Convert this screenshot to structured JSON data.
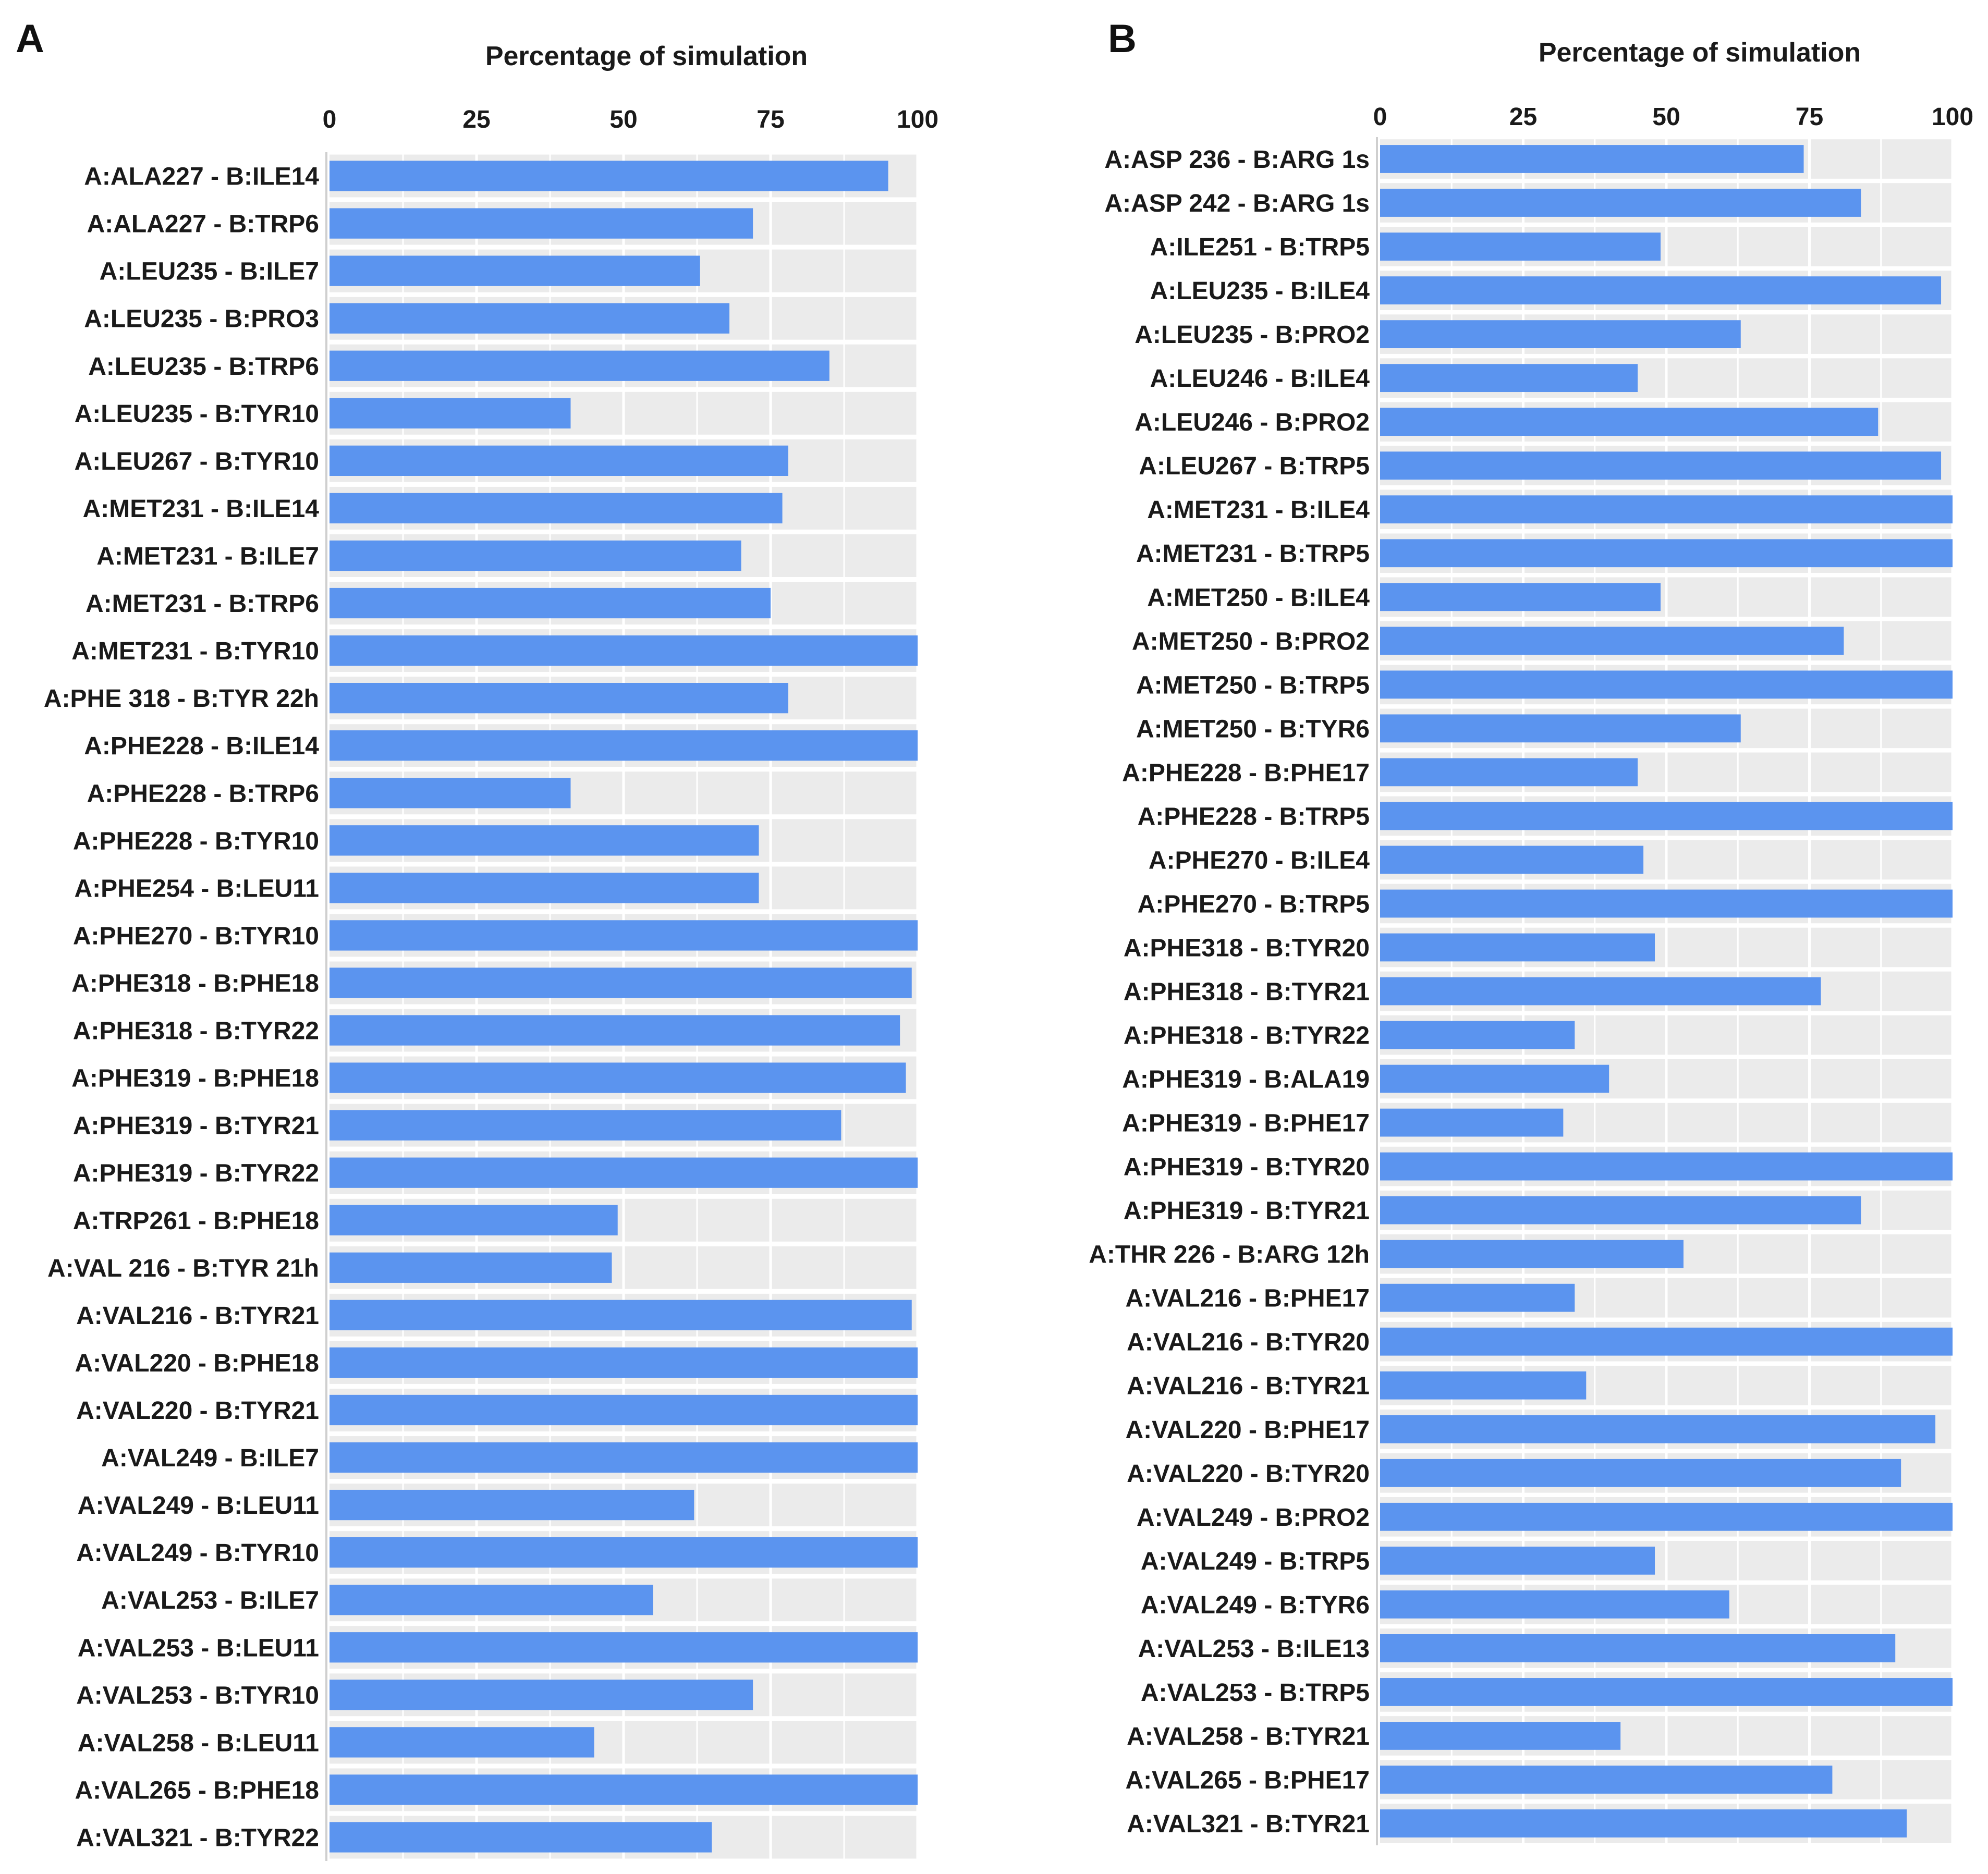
{
  "chart_data": [
    {
      "type": "bar",
      "orientation": "horizontal",
      "panel_label": "A",
      "title": "Percentage of simulation",
      "xlabel": "Percentage of simulation",
      "ylabel": "",
      "xlim": [
        0,
        100
      ],
      "ticks": [
        "0",
        "25",
        "50",
        "75",
        "100"
      ],
      "tick_values": [
        0,
        25,
        50,
        75,
        100
      ],
      "grid": true,
      "bar_color": "#5b94ef",
      "background_color": "#ebebeb",
      "categories": [
        "A:ALA227 - B:ILE14",
        "A:ALA227 - B:TRP6",
        "A:LEU235 - B:ILE7",
        "A:LEU235 - B:PRO3",
        "A:LEU235 - B:TRP6",
        "A:LEU235 - B:TYR10",
        "A:LEU267 - B:TYR10",
        "A:MET231 - B:ILE14",
        "A:MET231 - B:ILE7",
        "A:MET231 - B:TRP6",
        "A:MET231 - B:TYR10",
        "A:PHE 318 - B:TYR 22h",
        "A:PHE228 - B:ILE14",
        "A:PHE228 - B:TRP6",
        "A:PHE228 - B:TYR10",
        "A:PHE254 - B:LEU11",
        "A:PHE270 - B:TYR10",
        "A:PHE318 - B:PHE18",
        "A:PHE318 - B:TYR22",
        "A:PHE319 - B:PHE18",
        "A:PHE319 - B:TYR21",
        "A:PHE319 - B:TYR22",
        "A:TRP261 - B:PHE18",
        "A:VAL 216 - B:TYR 21h",
        "A:VAL216 - B:TYR21",
        "A:VAL220 - B:PHE18",
        "A:VAL220 - B:TYR21",
        "A:VAL249 - B:ILE7",
        "A:VAL249 - B:LEU11",
        "A:VAL249 - B:TYR10",
        "A:VAL253 - B:ILE7",
        "A:VAL253 - B:LEU11",
        "A:VAL253 - B:TYR10",
        "A:VAL258 - B:LEU11",
        "A:VAL265 - B:PHE18",
        "A:VAL321 - B:TYR22"
      ],
      "values": [
        95,
        72,
        63,
        68,
        85,
        41,
        78,
        77,
        70,
        75,
        100,
        78,
        100,
        41,
        73,
        73,
        100,
        99,
        97,
        98,
        87,
        100,
        49,
        48,
        99,
        100,
        100,
        100,
        62,
        100,
        55,
        100,
        72,
        45,
        100,
        65
      ]
    },
    {
      "type": "bar",
      "orientation": "horizontal",
      "panel_label": "B",
      "title": "Percentage of simulation",
      "xlabel": "Percentage of simulation",
      "ylabel": "",
      "xlim": [
        0,
        100
      ],
      "ticks": [
        "0",
        "25",
        "50",
        "75",
        "100"
      ],
      "tick_values": [
        0,
        25,
        50,
        75,
        100
      ],
      "grid": true,
      "bar_color": "#5b94ef",
      "background_color": "#ebebeb",
      "categories": [
        "A:ASP 236 - B:ARG 1s",
        "A:ASP 242 - B:ARG 1s",
        "A:ILE251 - B:TRP5",
        "A:LEU235 - B:ILE4",
        "A:LEU235 - B:PRO2",
        "A:LEU246 - B:ILE4",
        "A:LEU246 - B:PRO2",
        "A:LEU267 - B:TRP5",
        "A:MET231 - B:ILE4",
        "A:MET231 - B:TRP5",
        "A:MET250 - B:ILE4",
        "A:MET250 - B:PRO2",
        "A:MET250 - B:TRP5",
        "A:MET250 - B:TYR6",
        "A:PHE228 - B:PHE17",
        "A:PHE228 - B:TRP5",
        "A:PHE270 - B:ILE4",
        "A:PHE270 - B:TRP5",
        "A:PHE318 - B:TYR20",
        "A:PHE318 - B:TYR21",
        "A:PHE318 - B:TYR22",
        "A:PHE319 - B:ALA19",
        "A:PHE319 - B:PHE17",
        "A:PHE319 - B:TYR20",
        "A:PHE319 - B:TYR21",
        "A:THR 226 - B:ARG 12h",
        "A:VAL216 - B:PHE17",
        "A:VAL216 - B:TYR20",
        "A:VAL216 - B:TYR21",
        "A:VAL220 - B:PHE17",
        "A:VAL220 - B:TYR20",
        "A:VAL249 - B:PRO2",
        "A:VAL249 - B:TRP5",
        "A:VAL249 - B:TYR6",
        "A:VAL253 - B:ILE13",
        "A:VAL253 - B:TRP5",
        "A:VAL258 - B:TYR21",
        "A:VAL265 - B:PHE17",
        "A:VAL321 - B:TYR21"
      ],
      "values": [
        74,
        84,
        49,
        98,
        63,
        45,
        87,
        98,
        100,
        100,
        49,
        81,
        100,
        63,
        45,
        100,
        46,
        100,
        48,
        77,
        34,
        40,
        32,
        100,
        84,
        53,
        34,
        100,
        36,
        97,
        91,
        100,
        48,
        61,
        90,
        100,
        42,
        79,
        92
      ]
    }
  ]
}
